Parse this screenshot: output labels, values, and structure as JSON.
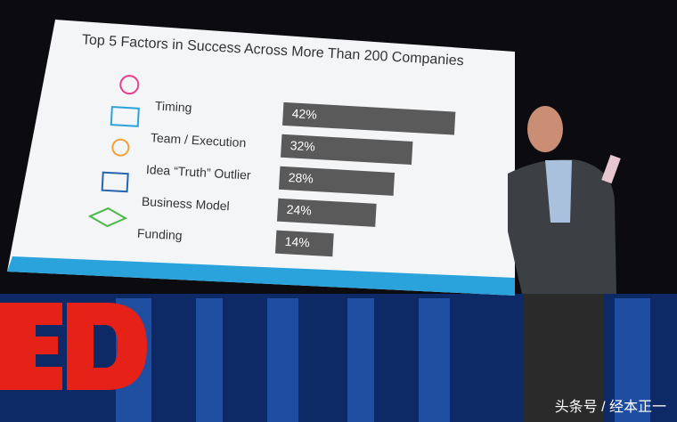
{
  "chart_data": {
    "type": "bar",
    "orientation": "horizontal",
    "title": "Top 5 Factors in Success Across More Than 200 Companies",
    "categories": [
      "Timing",
      "Team / Execution",
      "Idea “Truth” Outlier",
      "Business Model",
      "Funding"
    ],
    "values": [
      42,
      32,
      28,
      24,
      14
    ],
    "value_labels": [
      "42%",
      "32%",
      "28%",
      "24%",
      "14%"
    ],
    "color": "#5a5a5a"
  },
  "watermark": "头条号 / 经本正一"
}
